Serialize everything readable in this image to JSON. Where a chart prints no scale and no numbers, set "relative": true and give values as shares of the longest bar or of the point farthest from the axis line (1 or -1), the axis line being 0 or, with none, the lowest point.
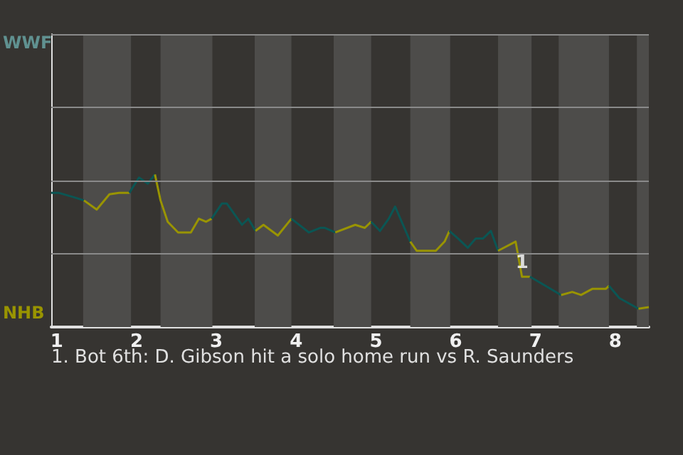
{
  "chart_data": {
    "type": "line",
    "relative": true,
    "series": [
      {
        "color": "#0b5654",
        "x": [
          0.93,
          1.02,
          1.22,
          1.34
        ],
        "values": [
          0.88,
          0.88,
          0.85,
          0.83
        ]
      },
      {
        "color": "#999400",
        "x": [
          1.34,
          1.5,
          1.66,
          1.78,
          1.91
        ],
        "values": [
          0.83,
          0.77,
          0.87,
          0.88,
          0.88
        ]
      },
      {
        "color": "#0b5654",
        "x": [
          1.91,
          2.03,
          2.14,
          2.23
        ],
        "values": [
          0.88,
          0.98,
          0.94,
          1
        ]
      },
      {
        "color": "#999400",
        "x": [
          2.23,
          2.3,
          2.39,
          2.52,
          2.68,
          2.78,
          2.87,
          2.94
        ],
        "values": [
          1,
          0.83,
          0.69,
          0.62,
          0.62,
          0.71,
          0.69,
          0.71
        ]
      },
      {
        "color": "#0b5654",
        "x": [
          2.94,
          3.07,
          3.13,
          3.32,
          3.4,
          3.49
        ],
        "values": [
          0.71,
          0.81,
          0.81,
          0.67,
          0.71,
          0.63
        ]
      },
      {
        "color": "#999400",
        "x": [
          3.49,
          3.59,
          3.77,
          3.94
        ],
        "values": [
          0.63,
          0.67,
          0.6,
          0.71
        ]
      },
      {
        "color": "#0b5654",
        "x": [
          3.94,
          4.16,
          4.3,
          4.36,
          4.49
        ],
        "values": [
          0.71,
          0.62,
          0.65,
          0.65,
          0.62
        ]
      },
      {
        "color": "#999400",
        "x": [
          4.49,
          4.74,
          4.86,
          4.94
        ],
        "values": [
          0.62,
          0.67,
          0.65,
          0.69
        ]
      },
      {
        "color": "#0b5654",
        "x": [
          4.94,
          5.05,
          5.16,
          5.24,
          5.43
        ],
        "values": [
          0.69,
          0.63,
          0.71,
          0.79,
          0.56
        ]
      },
      {
        "color": "#999400",
        "x": [
          5.43,
          5.51,
          5.75,
          5.86,
          5.92
        ],
        "values": [
          0.56,
          0.5,
          0.5,
          0.56,
          0.63
        ]
      },
      {
        "color": "#0b5654",
        "x": [
          5.92,
          6.03,
          6.15,
          6.25,
          6.34,
          6.44,
          6.53
        ],
        "values": [
          0.63,
          0.58,
          0.52,
          0.58,
          0.58,
          0.63,
          0.5
        ]
      },
      {
        "color": "#999400",
        "x": [
          6.53,
          6.75,
          6.83,
          6.93
        ],
        "values": [
          0.5,
          0.56,
          0.33,
          0.33
        ]
      },
      {
        "color": "#0b5654",
        "x": [
          6.93,
          7.06,
          7.32
        ],
        "values": [
          0.33,
          0.29,
          0.21
        ]
      },
      {
        "color": "#999400",
        "x": [
          7.32,
          7.46,
          7.57,
          7.71,
          7.88,
          7.92
        ],
        "values": [
          0.21,
          0.23,
          0.21,
          0.25,
          0.25,
          0.27
        ]
      },
      {
        "color": "#0b5654",
        "x": [
          7.92,
          8.05,
          8.29
        ],
        "values": [
          0.27,
          0.19,
          0.12
        ]
      },
      {
        "color": "#999400",
        "x": [
          8.29,
          8.42
        ],
        "values": [
          0.12,
          0.13
        ]
      }
    ],
    "xlim": [
      0.93,
      8.42
    ],
    "xticks": [
      1,
      2,
      3,
      4,
      5,
      6,
      7,
      8
    ],
    "ref_lines": [
      {
        "axis": "y",
        "value": 0.48,
        "color": "#8a8a8a"
      },
      {
        "axis": "y",
        "value": 0.96,
        "color": "#8a8a8a"
      },
      {
        "axis": "y",
        "value": 1.44,
        "color": "#8a8a8a"
      },
      {
        "axis": "y",
        "value": 1.92,
        "color": "#8a8a8a"
      }
    ],
    "bands": [
      {
        "axis": "x",
        "from": 1.33,
        "to": 1.93,
        "color": "#4d4c4a"
      },
      {
        "axis": "x",
        "from": 2.3,
        "to": 2.95,
        "color": "#4d4c4a"
      },
      {
        "axis": "x",
        "from": 3.48,
        "to": 3.94,
        "color": "#4d4c4a"
      },
      {
        "axis": "x",
        "from": 4.47,
        "to": 4.94,
        "color": "#4d4c4a"
      },
      {
        "axis": "x",
        "from": 5.43,
        "to": 5.93,
        "color": "#4d4c4a"
      },
      {
        "axis": "x",
        "from": 6.53,
        "to": 6.95,
        "color": "#4d4c4a"
      },
      {
        "axis": "x",
        "from": 7.29,
        "to": 7.92,
        "color": "#4d4c4a"
      },
      {
        "axis": "x",
        "from": 8.27,
        "to": 8.42,
        "color": "#4d4c4a"
      }
    ],
    "annotations": [
      "WWF",
      "NHB",
      {
        "text": "1",
        "x": 6.83,
        "y": 0.33
      },
      "1. Bot 6th: D. Gibson hit a solo home run vs R. Saunders"
    ],
    "marker": "none"
  }
}
